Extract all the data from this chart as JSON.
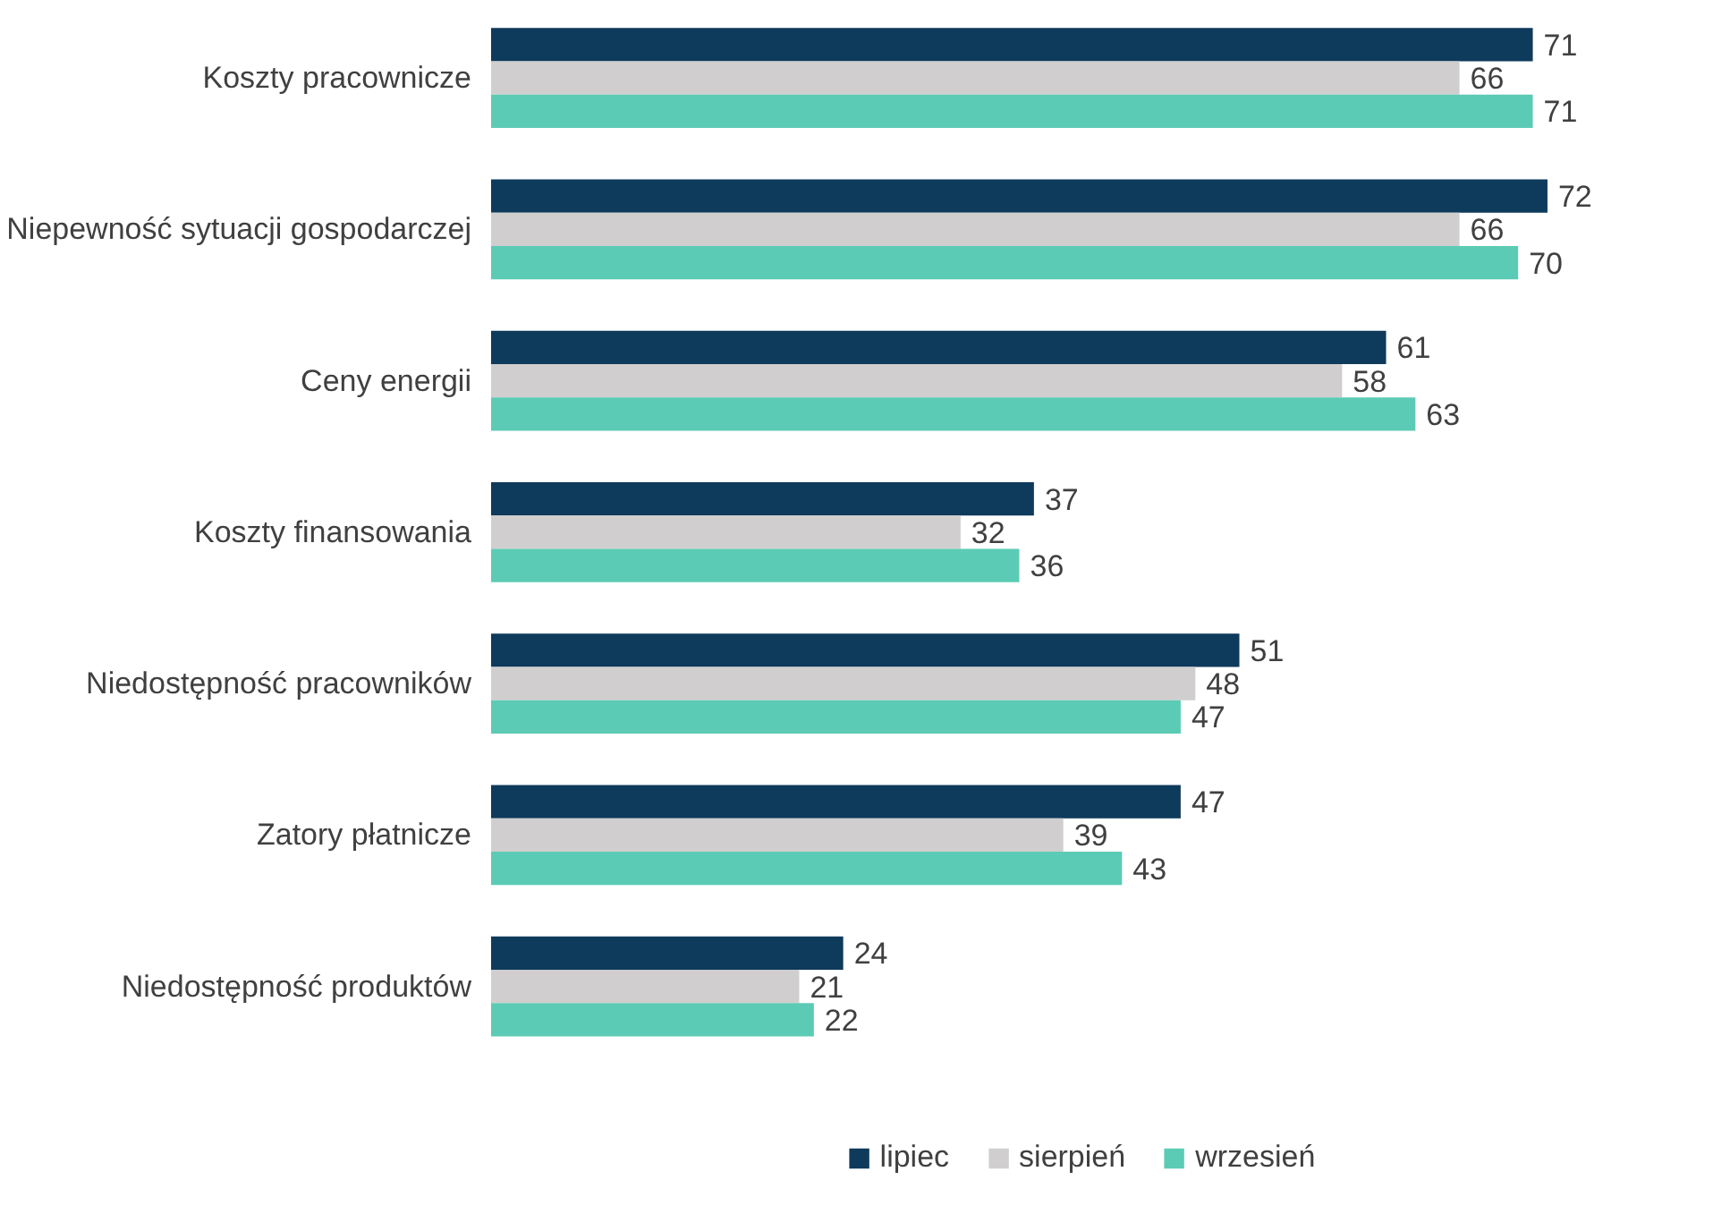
{
  "chart_data": {
    "type": "bar",
    "orientation": "horizontal",
    "categories": [
      "Koszty pracownicze",
      "Niepewność sytuacji gospodarczej",
      "Ceny energii",
      "Koszty finansowania",
      "Niedostępność pracowników",
      "Zatory płatnicze",
      "Niedostępność produktów"
    ],
    "series": [
      {
        "name": "lipiec",
        "color": "#0e3a5c",
        "values": [
          71,
          72,
          61,
          37,
          51,
          47,
          24
        ]
      },
      {
        "name": "sierpień",
        "color": "#d0cece",
        "values": [
          66,
          66,
          58,
          32,
          48,
          39,
          21
        ]
      },
      {
        "name": "wrzesień",
        "color": "#5ccbb5",
        "values": [
          71,
          70,
          63,
          36,
          47,
          43,
          22
        ]
      }
    ],
    "data_labels": true,
    "legend": "bottom",
    "grid": false
  }
}
